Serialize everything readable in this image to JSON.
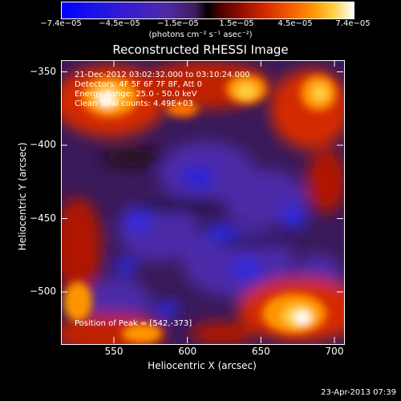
{
  "colorbar": {
    "ticks": [
      "−7.4e−05",
      "−4.5e−05",
      "−1.5e−05",
      "1.5e−05",
      "4.5e−05",
      "7.4e−05"
    ],
    "units": "(photons cm⁻² s⁻¹ asec⁻²)"
  },
  "title": "Reconstructed RHESSI Image",
  "info": {
    "time": "21-Dec-2012 03:02:32.000 to 03:10:24.000",
    "detectors": "Detectors: 4F 5F 6F 7F 8F, Att 0",
    "energy": "Energy Range: 25.0 - 50.0 keV",
    "clean": "Clean  Total counts: 4.49E+03",
    "peak": "Position of Peak = [542,-373]"
  },
  "axes": {
    "xlabel": "Heliocentric X (arcsec)",
    "ylabel": "Heliocentric Y (arcsec)",
    "xticks": [
      "550",
      "600",
      "650",
      "700"
    ],
    "yticks": [
      "−350",
      "−400",
      "−450",
      "−500"
    ],
    "xrange": [
      514,
      706
    ],
    "yrange": [
      -535,
      -342
    ],
    "xtick_values": [
      550,
      600,
      650,
      700
    ],
    "ytick_values": [
      -350,
      -400,
      -450,
      -500
    ]
  },
  "footer": "23-Apr-2013 07:39",
  "colors": {
    "max": "#ffffff",
    "min": "#0000ff",
    "background": "#000000"
  }
}
